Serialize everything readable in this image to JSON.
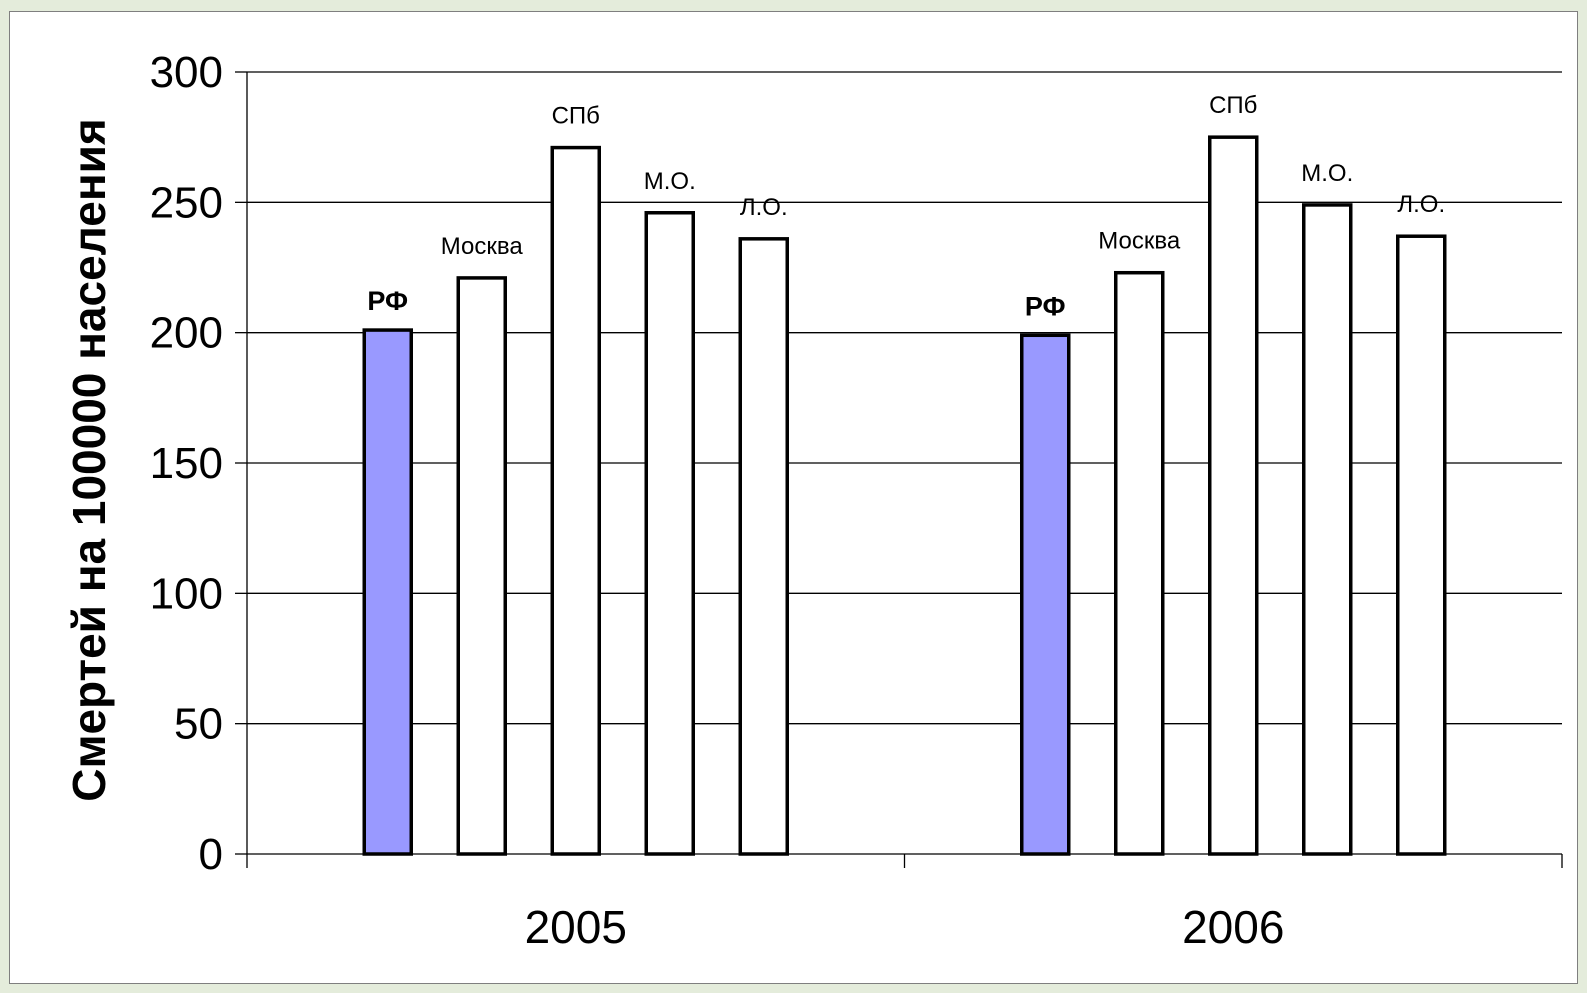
{
  "colors": {
    "highlight": "#9999ff",
    "plain": "#ffffff",
    "stroke": "#000000",
    "grid": "#000000"
  },
  "chart_data": {
    "type": "bar",
    "categories": [
      "2005",
      "2006"
    ],
    "series": [
      {
        "label": "РФ",
        "values": [
          201,
          199
        ],
        "color": "#9999ff",
        "bold": true
      },
      {
        "label": "Москва",
        "values": [
          221,
          223
        ],
        "color": "#ffffff",
        "bold": false
      },
      {
        "label": "СПб",
        "values": [
          271,
          275
        ],
        "color": "#ffffff",
        "bold": false
      },
      {
        "label": "М.О.",
        "values": [
          246,
          249
        ],
        "color": "#ffffff",
        "bold": false
      },
      {
        "label": "Л.О.",
        "values": [
          236,
          237
        ],
        "color": "#ffffff",
        "bold": false
      }
    ],
    "ylabel": "Смертей на 100000 населения",
    "xlabel": "",
    "title": "",
    "ylim": [
      0,
      300
    ],
    "yticks": [
      0,
      50,
      100,
      150,
      200,
      250,
      300
    ],
    "grid": true,
    "legend": "none"
  }
}
